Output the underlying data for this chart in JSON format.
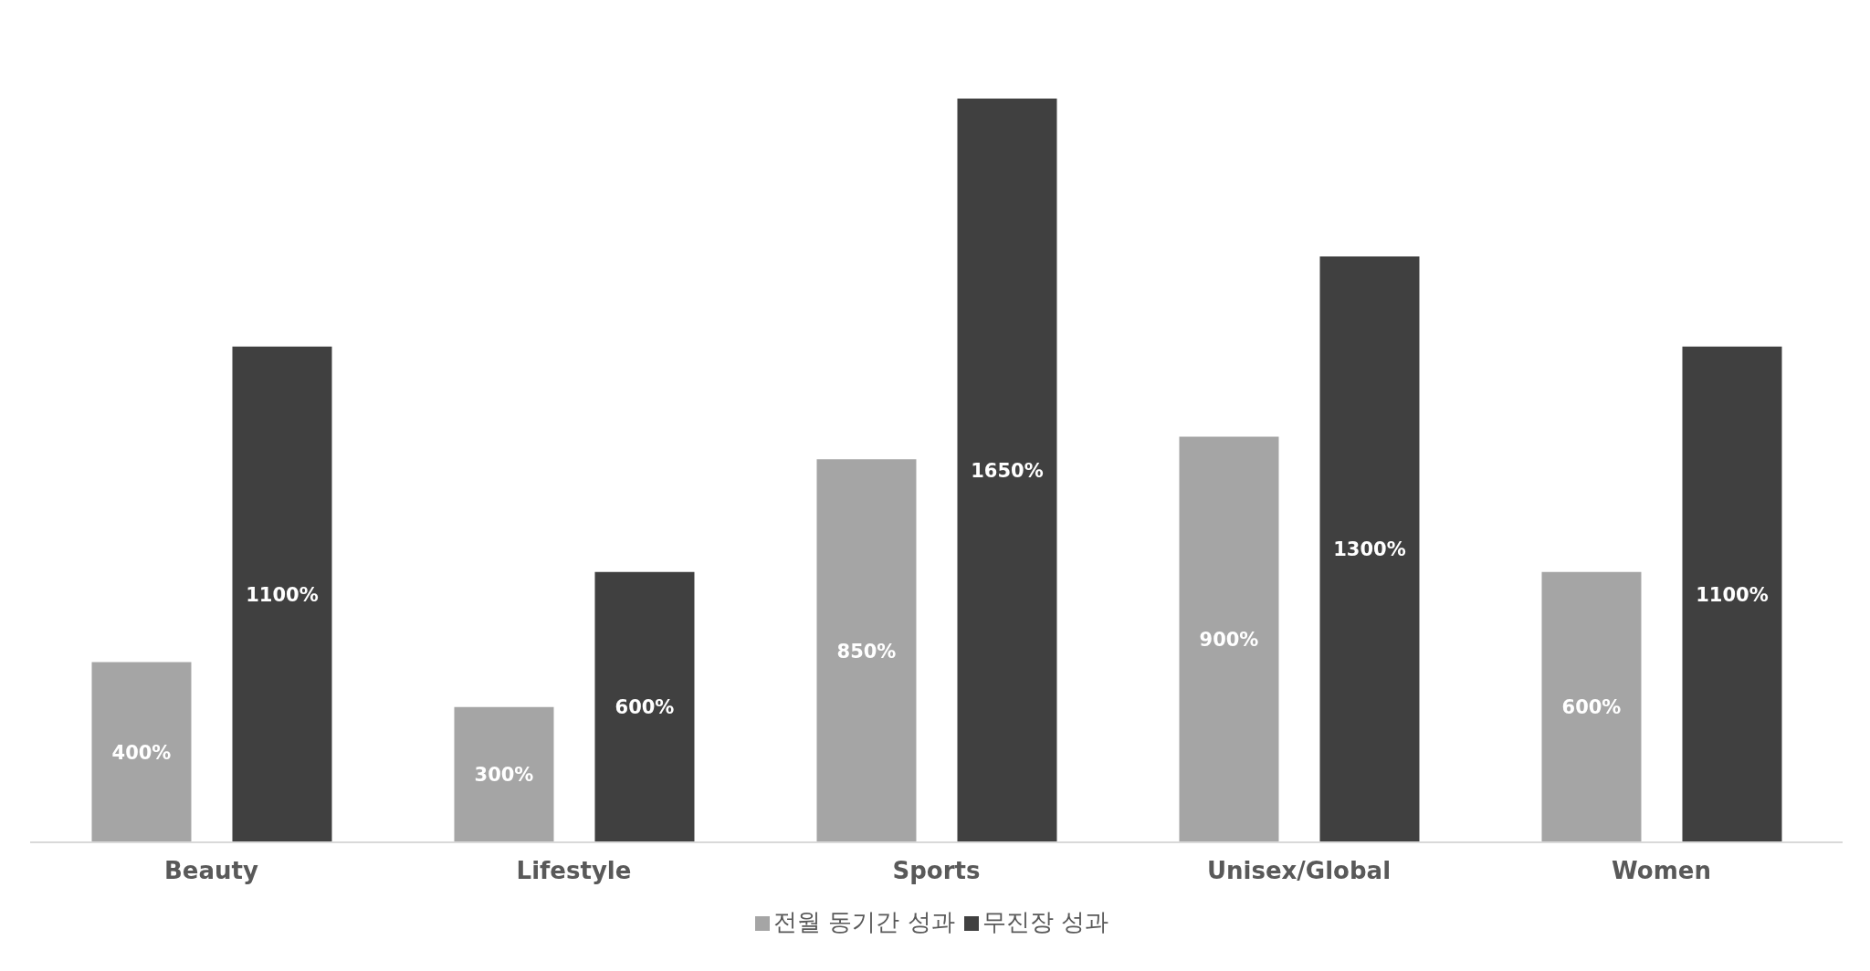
{
  "chart_data": {
    "type": "bar",
    "categories": [
      "Beauty",
      "Lifestyle",
      "Sports",
      "Unisex/Global",
      "Women"
    ],
    "series": [
      {
        "name": "전월 동기간 성과",
        "color": "#a5a5a5",
        "values": [
          400,
          300,
          850,
          900,
          600
        ],
        "value_labels": [
          "400%",
          "300%",
          "850%",
          "900%",
          "600%"
        ]
      },
      {
        "name": "무진장 성과",
        "color": "#404040",
        "values": [
          1100,
          600,
          1650,
          1300,
          1100
        ],
        "value_labels": [
          "1100%",
          "600%",
          "1650%",
          "1300%",
          "1100%"
        ]
      }
    ],
    "legend": "bottom",
    "grid": false
  }
}
